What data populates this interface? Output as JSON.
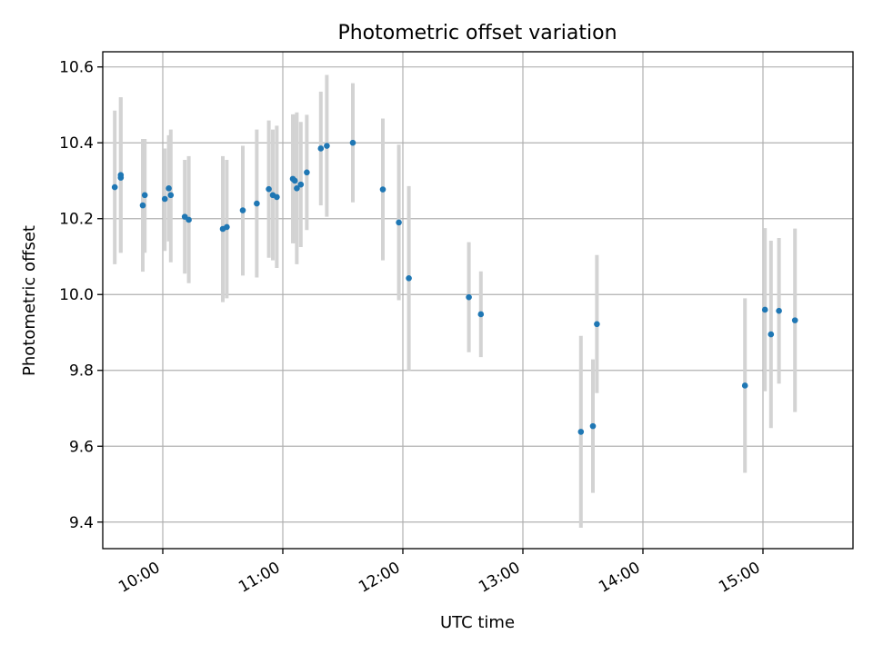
{
  "chart_data": {
    "type": "scatter",
    "title": "Photometric offset variation",
    "xlabel": "UTC time",
    "ylabel": "Photometric offset",
    "grid": true,
    "xlim": [
      "09:30",
      "15:45"
    ],
    "ylim": [
      9.33,
      10.64
    ],
    "x_ticks": [
      "10:00",
      "11:00",
      "12:00",
      "13:00",
      "14:00",
      "15:00"
    ],
    "y_ticks": [
      "9.4",
      "9.6",
      "9.8",
      "10.0",
      "10.2",
      "10.4",
      "10.6"
    ],
    "marker_color": "#1f77b4",
    "errorbar_color": "#d3d3d3",
    "points": [
      {
        "t": "09:36",
        "y": 10.283,
        "lo": 10.08,
        "hi": 10.485
      },
      {
        "t": "09:39",
        "y": 10.308,
        "lo": 10.11,
        "hi": 10.52
      },
      {
        "t": "09:39",
        "y": 10.315,
        "lo": 10.11,
        "hi": 10.52
      },
      {
        "t": "09:50",
        "y": 10.235,
        "lo": 10.06,
        "hi": 10.41
      },
      {
        "t": "09:51",
        "y": 10.262,
        "lo": 10.11,
        "hi": 10.41
      },
      {
        "t": "10:01",
        "y": 10.252,
        "lo": 10.115,
        "hi": 10.385
      },
      {
        "t": "10:03",
        "y": 10.28,
        "lo": 10.14,
        "hi": 10.42
      },
      {
        "t": "10:04",
        "y": 10.262,
        "lo": 10.085,
        "hi": 10.435
      },
      {
        "t": "10:11",
        "y": 10.205,
        "lo": 10.055,
        "hi": 10.355
      },
      {
        "t": "10:13",
        "y": 10.197,
        "lo": 10.03,
        "hi": 10.365
      },
      {
        "t": "10:30",
        "y": 10.173,
        "lo": 9.98,
        "hi": 10.365
      },
      {
        "t": "10:32",
        "y": 10.178,
        "lo": 9.99,
        "hi": 10.355
      },
      {
        "t": "10:40",
        "y": 10.222,
        "lo": 10.05,
        "hi": 10.392
      },
      {
        "t": "10:47",
        "y": 10.24,
        "lo": 10.045,
        "hi": 10.435
      },
      {
        "t": "10:53",
        "y": 10.278,
        "lo": 10.097,
        "hi": 10.459
      },
      {
        "t": "10:55",
        "y": 10.262,
        "lo": 10.09,
        "hi": 10.435
      },
      {
        "t": "10:57",
        "y": 10.257,
        "lo": 10.07,
        "hi": 10.445
      },
      {
        "t": "11:05",
        "y": 10.305,
        "lo": 10.135,
        "hi": 10.475
      },
      {
        "t": "11:06",
        "y": 10.3,
        "lo": 10.135,
        "hi": 10.475
      },
      {
        "t": "11:07",
        "y": 10.28,
        "lo": 10.08,
        "hi": 10.48
      },
      {
        "t": "11:09",
        "y": 10.29,
        "lo": 10.125,
        "hi": 10.455
      },
      {
        "t": "11:12",
        "y": 10.322,
        "lo": 10.17,
        "hi": 10.474
      },
      {
        "t": "11:19",
        "y": 10.385,
        "lo": 10.235,
        "hi": 10.535
      },
      {
        "t": "11:22",
        "y": 10.392,
        "lo": 10.205,
        "hi": 10.579
      },
      {
        "t": "11:35",
        "y": 10.4,
        "lo": 10.243,
        "hi": 10.557
      },
      {
        "t": "11:50",
        "y": 10.277,
        "lo": 10.09,
        "hi": 10.464
      },
      {
        "t": "11:58",
        "y": 10.19,
        "lo": 9.985,
        "hi": 10.395
      },
      {
        "t": "12:03",
        "y": 10.043,
        "lo": 9.8,
        "hi": 10.286
      },
      {
        "t": "12:33",
        "y": 9.993,
        "lo": 9.848,
        "hi": 10.138
      },
      {
        "t": "12:39",
        "y": 9.948,
        "lo": 9.835,
        "hi": 10.061
      },
      {
        "t": "13:29",
        "y": 9.638,
        "lo": 9.385,
        "hi": 9.891
      },
      {
        "t": "13:35",
        "y": 9.653,
        "lo": 9.477,
        "hi": 9.829
      },
      {
        "t": "13:37",
        "y": 9.922,
        "lo": 9.74,
        "hi": 10.104
      },
      {
        "t": "14:51",
        "y": 9.76,
        "lo": 9.53,
        "hi": 9.99
      },
      {
        "t": "15:01",
        "y": 9.96,
        "lo": 9.745,
        "hi": 10.175
      },
      {
        "t": "15:04",
        "y": 9.895,
        "lo": 9.648,
        "hi": 10.142
      },
      {
        "t": "15:08",
        "y": 9.957,
        "lo": 9.765,
        "hi": 10.149
      },
      {
        "t": "15:16",
        "y": 9.932,
        "lo": 9.69,
        "hi": 10.174
      }
    ]
  }
}
